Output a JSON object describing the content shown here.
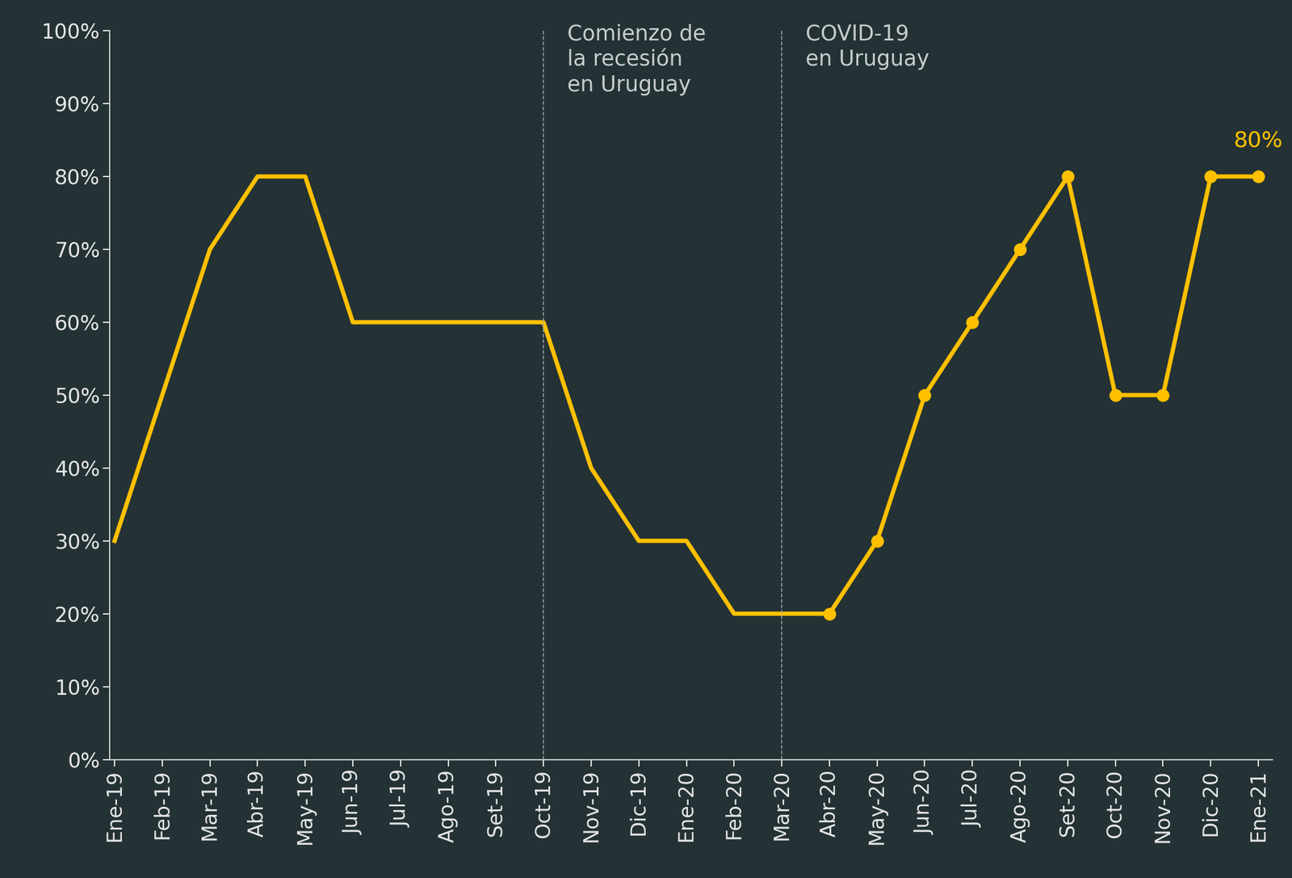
{
  "chart_data": {
    "type": "line",
    "categories": [
      "Ene-19",
      "Feb-19",
      "Mar-19",
      "Abr-19",
      "May-19",
      "Jun-19",
      "Jul-19",
      "Ago-19",
      "Set-19",
      "Oct-19",
      "Nov-19",
      "Dic-19",
      "Ene-20",
      "Feb-20",
      "Mar-20",
      "Abr-20",
      "May-20",
      "Jun-20",
      "Jul-20",
      "Ago-20",
      "Set-20",
      "Oct-20",
      "Nov-20",
      "Dic-20",
      "Ene-21"
    ],
    "series": [
      {
        "color": "#FFC000",
        "marker": "none",
        "line_style": "solid",
        "values": [
          30,
          50,
          70,
          80,
          80,
          60,
          60,
          60,
          60,
          60,
          40,
          30,
          30,
          20,
          20,
          20,
          null,
          null,
          null,
          null,
          null,
          null,
          null,
          null,
          null
        ]
      },
      {
        "color": "#FFC000",
        "marker": "o",
        "line_style": "solid",
        "values": [
          null,
          null,
          null,
          null,
          null,
          null,
          null,
          null,
          null,
          null,
          null,
          null,
          null,
          null,
          null,
          20,
          30,
          50,
          60,
          70,
          80,
          50,
          50,
          80,
          80
        ],
        "value_labels": [
          null,
          null,
          null,
          null,
          null,
          null,
          null,
          null,
          null,
          null,
          null,
          null,
          null,
          null,
          null,
          null,
          null,
          null,
          null,
          null,
          null,
          null,
          null,
          null,
          "80%"
        ]
      }
    ],
    "annotations": [
      {
        "text": "Comienzo de\nla recesión\nen Uruguay",
        "x": "Oct-19"
      },
      {
        "text": "COVID-19\nen Uruguay",
        "x": "Mar-20"
      }
    ],
    "ylim": [
      0,
      100
    ],
    "yticks": [
      {
        "value": 0,
        "label": "0%"
      },
      {
        "value": 10,
        "label": "10%"
      },
      {
        "value": 20,
        "label": "20%"
      },
      {
        "value": 30,
        "label": "30%"
      },
      {
        "value": 40,
        "label": "40%"
      },
      {
        "value": 50,
        "label": "50%"
      },
      {
        "value": 60,
        "label": "60%"
      },
      {
        "value": 70,
        "label": "70%"
      },
      {
        "value": 80,
        "label": "80%"
      },
      {
        "value": 90,
        "label": "90%"
      },
      {
        "value": 100,
        "label": "100%"
      }
    ],
    "grid": false
  }
}
